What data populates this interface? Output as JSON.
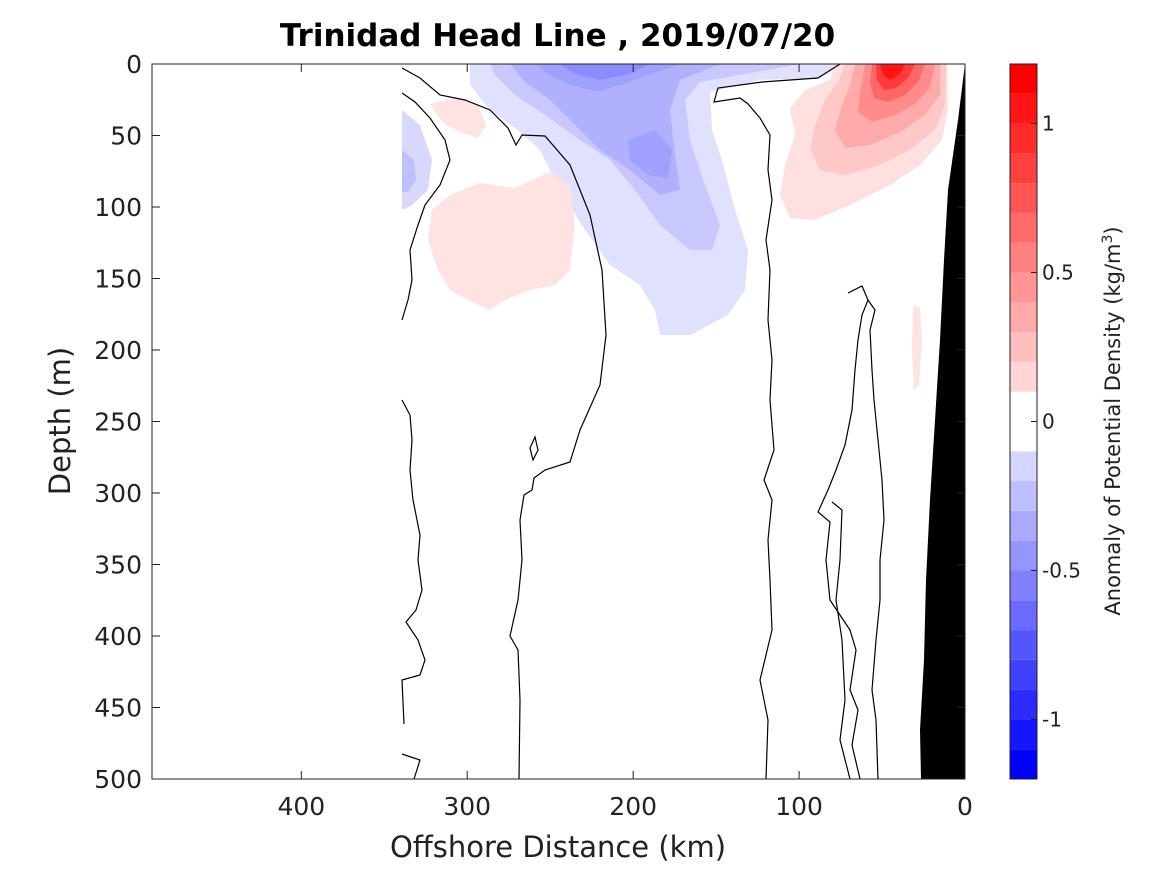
{
  "chart_data": {
    "type": "heatmap",
    "title": "Trinidad Head Line , 2019/07/20",
    "xlabel": "Offshore Distance (km)",
    "ylabel": "Depth (m)",
    "xlim": [
      490,
      0
    ],
    "ylim": [
      500,
      0
    ],
    "x_reversed": true,
    "y_reversed": true,
    "xticks": [
      400,
      300,
      200,
      100,
      0
    ],
    "yticks": [
      0,
      50,
      100,
      150,
      200,
      250,
      300,
      350,
      400,
      450,
      500
    ],
    "colorbar": {
      "label_prefix": "Anomaly of Potential Density (kg/m",
      "label_sup": "3",
      "label_suffix": ")",
      "range": [
        -1.2,
        1.2
      ],
      "levels": [
        -1.2,
        -1.1,
        -1.0,
        -0.9,
        -0.8,
        -0.7,
        -0.6,
        -0.5,
        -0.4,
        -0.3,
        -0.2,
        -0.1,
        0,
        0.1,
        0.2,
        0.3,
        0.4,
        0.5,
        0.6,
        0.7,
        0.8,
        0.9,
        1.0,
        1.1,
        1.2
      ],
      "ticks": [
        1,
        0.5,
        0,
        -0.5,
        -1
      ],
      "tick_labels": [
        "1",
        "0.5",
        "0",
        "-0.5",
        "-1"
      ]
    },
    "data_extent_km": [
      340,
      0
    ],
    "colormap": {
      "negative": "#0000ff",
      "zero": "#ffffff",
      "positive": "#ff0000"
    },
    "bathymetry_color": "#000000",
    "anomaly_regions": [
      {
        "sign": "negative",
        "peak": -0.6,
        "km": [
          310,
          130
        ],
        "depth": [
          0,
          190
        ]
      },
      {
        "sign": "negative",
        "peak": -0.2,
        "km": [
          340,
          330
        ],
        "depth": [
          50,
          100
        ]
      },
      {
        "sign": "positive",
        "peak": 1.2,
        "km": [
          120,
          10
        ],
        "depth": [
          0,
          100
        ]
      },
      {
        "sign": "positive",
        "peak": 0.2,
        "km": [
          330,
          260
        ],
        "depth": [
          75,
          165
        ]
      },
      {
        "sign": "positive",
        "peak": 0.2,
        "km": [
          330,
          290
        ],
        "depth": [
          25,
          50
        ]
      },
      {
        "sign": "positive",
        "peak": 0.1,
        "km": [
          30,
          25
        ],
        "depth": [
          170,
          230
        ]
      }
    ]
  }
}
